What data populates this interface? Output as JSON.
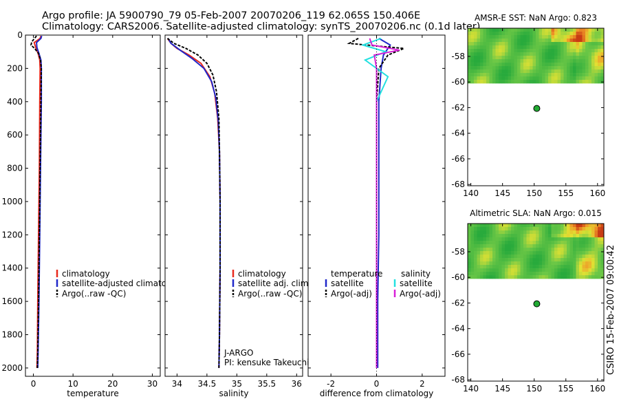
{
  "header": {
    "line1": "Argo profile: JA 5900790_79 05-Feb-2007 20070206_119 62.065S 150.406E",
    "line2": "Climatology: CARS2006. Satellite-adjusted climatology: synTS_20070206.nc (0.1d later)"
  },
  "footer_stamp": "CSIRO 15-Feb-2007 09:00:42",
  "colors": {
    "red": "#e8281c",
    "blue": "#1f27c9",
    "black": "#000000",
    "cyan": "#22e0e0",
    "magenta": "#d81ed8",
    "dot": "#22aa33"
  },
  "chart_data": [
    {
      "id": "temperature",
      "type": "line",
      "xlabel": "temperature",
      "xlim": [
        -2,
        32
      ],
      "ylim": [
        2050,
        0
      ],
      "xticks": [
        0,
        10,
        20,
        30
      ],
      "yticks": [
        0,
        200,
        400,
        600,
        800,
        1000,
        1200,
        1400,
        1600,
        1800,
        2000
      ],
      "legend": [
        "climatology",
        "satellite-adjusted climatology",
        "Argo(..raw -QC)"
      ],
      "series": [
        {
          "name": "climatology",
          "color": "#e8281c",
          "dash": "",
          "x": [
            1.9,
            1.7,
            0.2,
            0.6,
            1.2,
            1.6,
            1.7,
            1.6,
            1.5,
            1.3,
            1.1,
            1.0,
            0.9
          ],
          "y": [
            5,
            20,
            45,
            75,
            110,
            150,
            200,
            400,
            800,
            1200,
            1600,
            1900,
            2000
          ]
        },
        {
          "name": "satellite-adjusted climatology",
          "color": "#1f27c9",
          "dash": "",
          "x": [
            2.1,
            1.9,
            0.8,
            0.9,
            1.4,
            1.9,
            2.0,
            2.0,
            1.8,
            1.6,
            1.4,
            1.2,
            1.1
          ],
          "y": [
            5,
            20,
            45,
            75,
            110,
            150,
            200,
            400,
            800,
            1200,
            1600,
            1900,
            2000
          ]
        },
        {
          "name": "Argo(..raw -QC)",
          "color": "#000000",
          "dash": "4,2",
          "x": [
            0.8,
            -0.4,
            -0.6,
            0.3,
            1.3,
            1.8,
            2.0,
            1.9,
            1.7,
            1.5,
            1.3,
            1.1,
            1.0
          ],
          "y": [
            5,
            40,
            60,
            80,
            110,
            150,
            200,
            400,
            800,
            1200,
            1600,
            1900,
            2000
          ]
        }
      ]
    },
    {
      "id": "salinity",
      "type": "line",
      "xlabel": "salinity",
      "xlim": [
        33.8,
        36.1
      ],
      "ylim": [
        2050,
        0
      ],
      "xticks": [
        34,
        34.5,
        35,
        35.5,
        36
      ],
      "xtick_labels": [
        "34",
        "34.5",
        "35",
        "35.5",
        "36"
      ],
      "yticks": [
        0,
        200,
        400,
        600,
        800,
        1000,
        1200,
        1400,
        1600,
        1800,
        2000
      ],
      "legend": [
        "climatology",
        "satellite adj. clim.",
        "Argo(..raw -QC)"
      ],
      "annotation": [
        "J-ARGO",
        "PI: kensuke Takeuchi"
      ],
      "series": [
        {
          "name": "climatology",
          "color": "#e8281c",
          "dash": "",
          "x": [
            33.84,
            33.9,
            34.0,
            34.2,
            34.4,
            34.55,
            34.63,
            34.68,
            34.71,
            34.72,
            34.72,
            34.71,
            34.7
          ],
          "y": [
            20,
            50,
            80,
            120,
            170,
            250,
            350,
            500,
            700,
            1000,
            1400,
            1800,
            2000
          ]
        },
        {
          "name": "satellite adj. clim.",
          "color": "#1f27c9",
          "dash": "",
          "x": [
            33.85,
            33.9,
            34.05,
            34.25,
            34.45,
            34.58,
            34.65,
            34.69,
            34.71,
            34.72,
            34.72,
            34.71,
            34.7
          ],
          "y": [
            20,
            50,
            90,
            140,
            200,
            280,
            380,
            520,
            700,
            1000,
            1400,
            1800,
            2000
          ]
        },
        {
          "name": "Argo(..raw -QC)",
          "color": "#000000",
          "dash": "4,2",
          "x": [
            33.84,
            33.95,
            34.15,
            34.35,
            34.5,
            34.6,
            34.66,
            34.7,
            34.71,
            34.72,
            34.72,
            34.71,
            34.7
          ],
          "y": [
            20,
            50,
            80,
            120,
            170,
            240,
            340,
            500,
            700,
            1000,
            1400,
            1800,
            2000
          ]
        }
      ]
    },
    {
      "id": "difference",
      "type": "line",
      "xlabel": "difference from climatology",
      "xlim": [
        -3.0,
        3.0
      ],
      "ylim": [
        2050,
        0
      ],
      "xticks": [
        -2,
        0,
        2
      ],
      "yticks": [
        0,
        200,
        400,
        600,
        800,
        1000,
        1200,
        1400,
        1600,
        1800,
        2000
      ],
      "legend_titles": [
        "temperature",
        "salinity"
      ],
      "legend_left": [
        "satellite",
        "Argo(-adj)"
      ],
      "legend_right": [
        "satellite",
        "Argo(-adj)"
      ],
      "series": [
        {
          "name": "temperature satellite",
          "color": "#1f27c9",
          "dash": "",
          "x": [
            0.1,
            0.6,
            0.3,
            0.2,
            0.1,
            0.1,
            0.1,
            0.05,
            0.05,
            0.05
          ],
          "y": [
            20,
            60,
            120,
            200,
            400,
            800,
            1200,
            1600,
            1900,
            2000
          ]
        },
        {
          "name": "temperature Argo(-adj)",
          "color": "#000000",
          "dash": "4,2",
          "x": [
            -0.8,
            -1.2,
            1.2,
            0.5,
            0.1,
            0.0,
            0.0,
            0.0,
            0.0,
            0.0
          ],
          "y": [
            20,
            50,
            80,
            120,
            200,
            400,
            800,
            1200,
            1600,
            2000
          ]
        },
        {
          "name": "salinity satellite",
          "color": "#22e0e0",
          "dash": "",
          "x": [
            0.2,
            -0.6,
            0.4,
            -0.5,
            0.5,
            0.0,
            0.0,
            0.0,
            0.0,
            0.0
          ],
          "y": [
            20,
            60,
            100,
            150,
            250,
            400,
            800,
            1200,
            1600,
            2000
          ]
        },
        {
          "name": "salinity Argo(-adj)",
          "color": "#d81ed8",
          "dash": "",
          "x": [
            -0.3,
            -0.2,
            1.0,
            -0.1,
            0.0,
            0.0,
            0.0,
            0.0,
            0.0,
            0.0
          ],
          "y": [
            20,
            60,
            90,
            120,
            200,
            400,
            800,
            1200,
            1600,
            2000
          ]
        }
      ]
    },
    {
      "id": "sst_map",
      "type": "heatmap",
      "title": "AMSR-E SST: NaN Argo: 0.823",
      "xlim": [
        139.5,
        161
      ],
      "ylim": [
        -68.1,
        -55.8
      ],
      "xticks": [
        140,
        145,
        150,
        155,
        160
      ],
      "yticks": [
        -58,
        -60,
        -62,
        -64,
        -66,
        -68
      ],
      "data_lat_range": [
        -60.1,
        -55.8
      ],
      "argo_point": {
        "lon": 150.406,
        "lat": -62.065
      }
    },
    {
      "id": "sla_map",
      "type": "heatmap",
      "title": "Altimetric SLA: NaN Argo: 0.015",
      "xlim": [
        139.5,
        161
      ],
      "ylim": [
        -68.1,
        -55.8
      ],
      "xticks": [
        140,
        145,
        150,
        155,
        160
      ],
      "yticks": [
        -58,
        -60,
        -62,
        -64,
        -66,
        -68
      ],
      "data_lat_range": [
        -60.1,
        -55.8
      ],
      "argo_point": {
        "lon": 150.406,
        "lat": -62.065
      }
    }
  ]
}
